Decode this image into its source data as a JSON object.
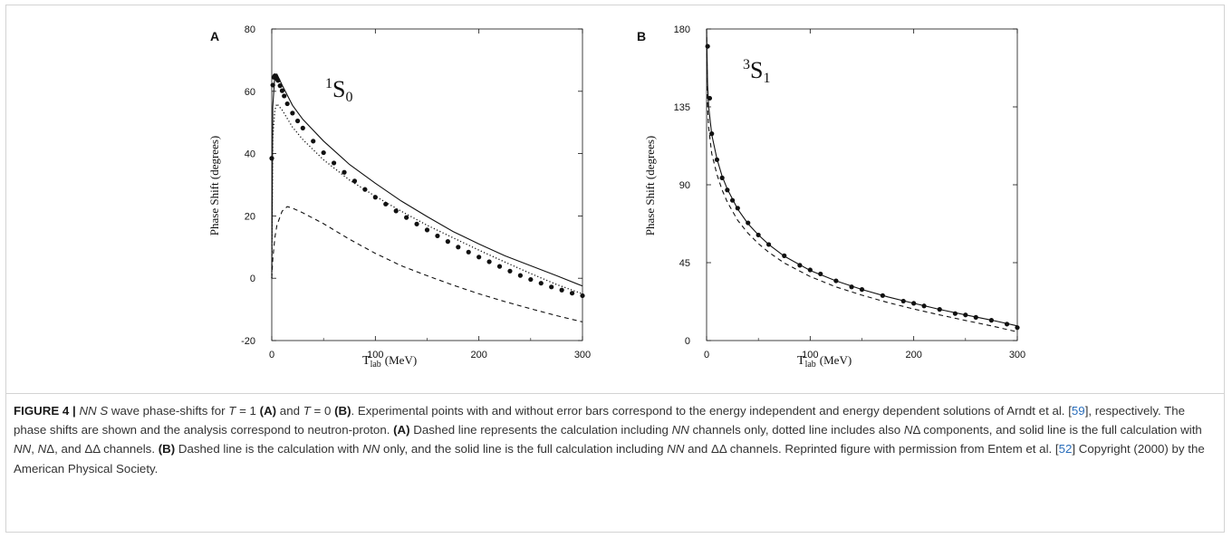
{
  "panels": [
    {
      "letter": "A",
      "state_label": {
        "main": "S",
        "pre": "1",
        "sub": "0"
      },
      "ylabel": "Phase Shift (degrees)",
      "xlabel": {
        "main": "T",
        "sub": "lab",
        "unit": "(MeV)"
      },
      "xticks": [
        "0",
        "100",
        "200",
        "300"
      ],
      "yticks": [
        "-20",
        "0",
        "20",
        "40",
        "60",
        "80"
      ]
    },
    {
      "letter": "B",
      "state_label": {
        "main": "S",
        "pre": "3",
        "sub": "1"
      },
      "ylabel": "Phase Shift (degrees)",
      "xlabel": {
        "main": "T",
        "sub": "lab",
        "unit": "(MeV)"
      },
      "xticks": [
        "0",
        "100",
        "200",
        "300"
      ],
      "yticks": [
        "0",
        "45",
        "90",
        "135",
        "180"
      ]
    }
  ],
  "chart_data": [
    {
      "type": "line",
      "panel": "A",
      "xlim": [
        0,
        300
      ],
      "ylim": [
        -20,
        80
      ],
      "grid": false,
      "series": [
        {
          "style": "solid",
          "x": [
            0,
            1,
            3,
            5,
            10,
            20,
            30,
            50,
            75,
            100,
            125,
            150,
            175,
            200,
            225,
            250,
            275,
            300
          ],
          "y": [
            0,
            55,
            65,
            65.5,
            62,
            55.5,
            51,
            44,
            36.5,
            30.5,
            24.8,
            19.8,
            15,
            11,
            7.2,
            4,
            0.8,
            -2.5
          ]
        },
        {
          "style": "dotted",
          "x": [
            0,
            1,
            3,
            5,
            10,
            20,
            30,
            50,
            75,
            100,
            125,
            150,
            175,
            200,
            225,
            250,
            275,
            300
          ],
          "y": [
            0,
            45,
            54,
            56,
            54,
            48.5,
            44.5,
            38,
            31.5,
            26.3,
            21.5,
            17,
            13,
            9,
            5.2,
            1.5,
            -2,
            -5
          ]
        },
        {
          "style": "dashed",
          "x": [
            0,
            1,
            3,
            5,
            10,
            15,
            20,
            30,
            50,
            75,
            100,
            125,
            150,
            175,
            200,
            225,
            250,
            275,
            300
          ],
          "y": [
            0,
            6,
            13,
            17,
            21.5,
            23,
            22.5,
            21,
            17.5,
            12.5,
            8,
            4,
            0.8,
            -2.2,
            -5,
            -7.5,
            -9.8,
            -12,
            -14
          ]
        },
        {
          "style": "points",
          "x": [
            0,
            1,
            2,
            3,
            4,
            5,
            6,
            8,
            10,
            12,
            15,
            20,
            25,
            30,
            40,
            50,
            60,
            70,
            80,
            90,
            100,
            110,
            120,
            130,
            140,
            150,
            160,
            170,
            180,
            190,
            200,
            210,
            220,
            230,
            240,
            250,
            260,
            270,
            280,
            290,
            300
          ],
          "y": [
            38.5,
            62,
            64.5,
            65,
            64.6,
            64,
            63.5,
            61.8,
            60.2,
            58.5,
            56,
            53,
            50.5,
            48.2,
            44,
            40.3,
            37,
            34,
            31.2,
            28.5,
            26,
            23.8,
            21.6,
            19.5,
            17.4,
            15.5,
            13.6,
            11.8,
            10,
            8.4,
            6.8,
            5.3,
            3.8,
            2.3,
            0.9,
            -0.4,
            -1.6,
            -2.8,
            -3.8,
            -4.8,
            -5.6
          ]
        }
      ]
    },
    {
      "type": "line",
      "panel": "B",
      "xlim": [
        0,
        300
      ],
      "ylim": [
        0,
        180
      ],
      "grid": false,
      "series": [
        {
          "style": "solid",
          "x": [
            0,
            1,
            2,
            5,
            10,
            15,
            20,
            30,
            40,
            50,
            60,
            75,
            100,
            125,
            150,
            175,
            200,
            225,
            250,
            275,
            300
          ],
          "y": [
            180,
            148,
            135,
            119,
            105,
            95,
            87.5,
            76,
            67.5,
            61,
            55.5,
            48.7,
            40.5,
            34.5,
            29.5,
            25.2,
            21.5,
            18,
            14.8,
            11.8,
            8.5
          ]
        },
        {
          "style": "dashed",
          "x": [
            0,
            1,
            2,
            5,
            10,
            15,
            20,
            30,
            40,
            50,
            60,
            75,
            100,
            125,
            150,
            175,
            200,
            225,
            250,
            275,
            300
          ],
          "y": [
            180,
            135,
            123,
            108,
            96,
            87,
            80,
            69.5,
            62,
            56,
            51,
            44.8,
            37,
            31,
            26.2,
            22,
            18.2,
            14.8,
            11.6,
            8.5,
            5
          ]
        },
        {
          "style": "points",
          "x": [
            1,
            3,
            5,
            10,
            15,
            20,
            25,
            30,
            40,
            50,
            60,
            75,
            90,
            100,
            110,
            125,
            140,
            150,
            170,
            190,
            200,
            210,
            225,
            240,
            250,
            260,
            275,
            290,
            300
          ],
          "y": [
            170,
            140,
            119.5,
            104.5,
            94,
            87,
            81,
            76.5,
            68,
            61,
            55.5,
            49,
            43.5,
            40.8,
            38.5,
            34.5,
            31,
            29.5,
            26,
            22.8,
            21.5,
            20,
            18,
            15.6,
            14.8,
            13.4,
            11.7,
            9.5,
            7.5
          ]
        }
      ]
    }
  ],
  "caption": {
    "label": "FIGURE 4 |",
    "segments": [
      {
        "t": "NN S",
        "s": "i"
      },
      {
        "t": " wave phase-shifts for ",
        "s": "n"
      },
      {
        "t": "T",
        "s": "i"
      },
      {
        "t": " = 1 ",
        "s": "n"
      },
      {
        "t": "(A)",
        "s": "b"
      },
      {
        "t": " and ",
        "s": "n"
      },
      {
        "t": "T",
        "s": "i"
      },
      {
        "t": " = 0 ",
        "s": "n"
      },
      {
        "t": "(B)",
        "s": "b"
      },
      {
        "t": ". Experimental points with and without error bars correspond to the energy independent and energy dependent solutions of Arndt et al. [",
        "s": "n"
      },
      {
        "t": "59",
        "s": "c"
      },
      {
        "t": "], respectively. The phase shifts are shown and the analysis correspond to neutron-proton. ",
        "s": "n"
      },
      {
        "t": "(A)",
        "s": "b"
      },
      {
        "t": " Dashed line represents the calculation including ",
        "s": "n"
      },
      {
        "t": "NN",
        "s": "i"
      },
      {
        "t": " channels only, dotted line includes also ",
        "s": "n"
      },
      {
        "t": "N",
        "s": "i"
      },
      {
        "t": "Δ components, and solid line is the full calculation with ",
        "s": "n"
      },
      {
        "t": "NN",
        "s": "i"
      },
      {
        "t": ", ",
        "s": "n"
      },
      {
        "t": "N",
        "s": "i"
      },
      {
        "t": "Δ, and ΔΔ channels. ",
        "s": "n"
      },
      {
        "t": "(B)",
        "s": "b"
      },
      {
        "t": " Dashed line is the calculation with ",
        "s": "n"
      },
      {
        "t": "NN",
        "s": "i"
      },
      {
        "t": " only, and the solid line is the full calculation including ",
        "s": "n"
      },
      {
        "t": "NN",
        "s": "i"
      },
      {
        "t": " and ΔΔ channels. Reprinted figure with permission from Entem et al. [",
        "s": "n"
      },
      {
        "t": "52",
        "s": "c"
      },
      {
        "t": "] Copyright (2000) by the American Physical Society.",
        "s": "n"
      }
    ]
  },
  "colors": {
    "ink": "#111111",
    "caption_text": "#333333",
    "citation": "#2a6ebb",
    "frame": "#d3d3d3"
  }
}
